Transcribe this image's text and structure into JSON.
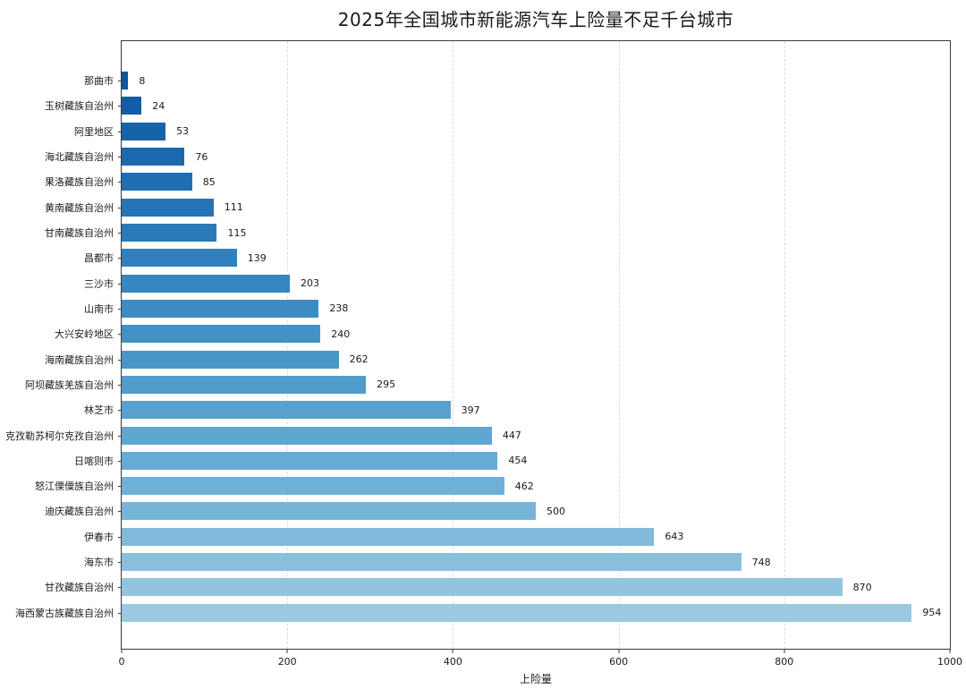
{
  "chart_data": {
    "type": "bar",
    "orientation": "horizontal",
    "title": "2025年全国城市新能源汽车上险量不足千台城市",
    "xlabel": "上险量",
    "ylabel": "",
    "xlim": [
      0,
      1000
    ],
    "xticks": [
      0,
      200,
      400,
      600,
      800,
      1000
    ],
    "grid": "vertical-dashed",
    "legend": "none",
    "value_labels_shown": true,
    "categories": [
      "那曲市",
      "玉树藏族自治州",
      "阿里地区",
      "海北藏族自治州",
      "果洛藏族自治州",
      "黄南藏族自治州",
      "甘南藏族自治州",
      "昌都市",
      "三沙市",
      "山南市",
      "大兴安岭地区",
      "海南藏族自治州",
      "阿坝藏族羌族自治州",
      "林芝市",
      "克孜勒苏柯尔克孜自治州",
      "日喀则市",
      "怒江傈僳族自治州",
      "迪庆藏族自治州",
      "伊春市",
      "海东市",
      "甘孜藏族自治州",
      "海西蒙古族藏族自治州"
    ],
    "values": [
      8,
      24,
      53,
      76,
      85,
      111,
      115,
      139,
      203,
      238,
      240,
      262,
      295,
      397,
      447,
      454,
      462,
      500,
      643,
      748,
      870,
      954
    ],
    "bar_colors": [
      "#0d57a1",
      "#125da6",
      "#1663aa",
      "#1a69ae",
      "#1f6eb3",
      "#2474b7",
      "#2a7aba",
      "#3080bd",
      "#3686c0",
      "#3c8cc3",
      "#4292c6",
      "#4997c9",
      "#509ccc",
      "#58a1ce",
      "#5fa6d1",
      "#66abd4",
      "#6eb0d7",
      "#77b5d8",
      "#81bada",
      "#8abfdc",
      "#93c4de",
      "#9cc9e0"
    ],
    "colors": {
      "spine": "#3a3a3a",
      "gridline": "#dcdcdc",
      "text": "#1a1a1a",
      "background": "#ffffff"
    }
  }
}
